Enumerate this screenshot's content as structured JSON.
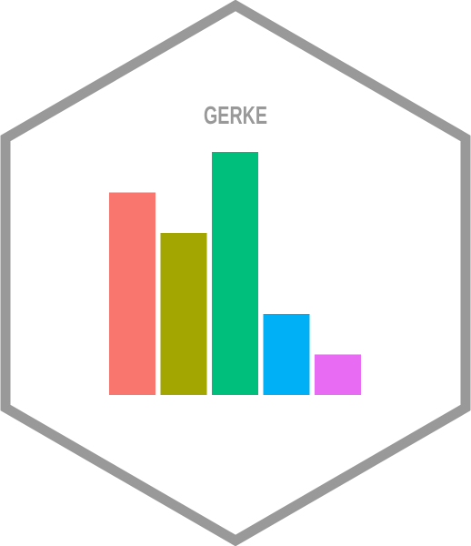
{
  "logo": {
    "title": "GERKE",
    "title_color": "#999999",
    "frame_color": "#999999",
    "background_color": "#ffffff"
  },
  "chart_data": {
    "type": "bar",
    "categories": [
      "",
      "",
      "",
      "",
      ""
    ],
    "values": [
      5,
      4,
      6,
      2,
      1
    ],
    "colors": [
      "#F8766D",
      "#A3A500",
      "#00BF7D",
      "#00B0F6",
      "#E76BF3"
    ],
    "title": "GERKE",
    "xlabel": "",
    "ylabel": "",
    "ylim": [
      0,
      6
    ],
    "grid": false,
    "legend": "none"
  }
}
